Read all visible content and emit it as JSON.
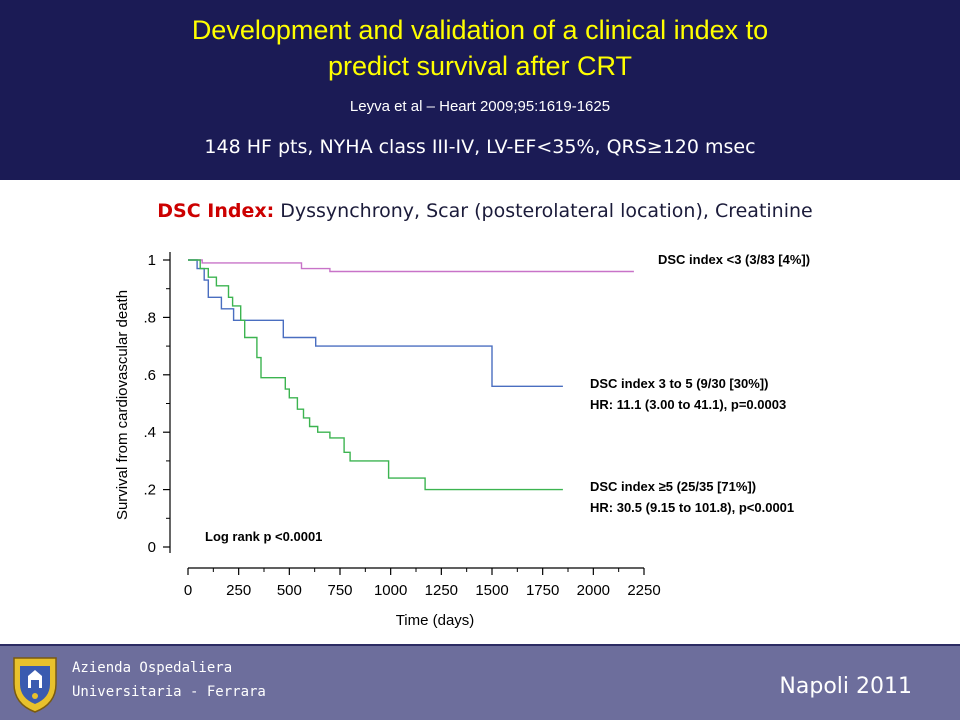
{
  "header": {
    "title_line1": "Development and validation of a clinical index to",
    "title_line2": "predict survival after CRT",
    "citation": "Leyva et al – Heart 2009;95:1619-1625",
    "cohort": "148 HF pts, NYHA class III-IV, LV-EF<35%, QRS≥120 msec"
  },
  "dsc_line": {
    "label": "DSC Index",
    "colon": ":",
    "text": " Dyssynchrony, Scar (posterolateral location), Creatinine"
  },
  "chart_data": {
    "type": "line",
    "step": true,
    "xlabel": "Time (days)",
    "ylabel": "Survival from cardiovascular death",
    "xlim": [
      0,
      2250
    ],
    "ylim": [
      0,
      1
    ],
    "x_ticks": [
      0,
      250,
      500,
      750,
      1000,
      1250,
      1500,
      1750,
      2000,
      2250
    ],
    "x_tick_labels": [
      "0",
      "250",
      "500",
      "750",
      "1000",
      "1250",
      "1500",
      "1750",
      "2000",
      "2250"
    ],
    "y_ticks": [
      0,
      0.2,
      0.4,
      0.6,
      0.8,
      1
    ],
    "y_tick_labels": [
      "0",
      ".2",
      ".4",
      ".6",
      ".8",
      "1"
    ],
    "grid": false,
    "series": [
      {
        "name": "DSC index <3 (3/83 [4%])",
        "color": "#c873c8",
        "x": [
          0,
          70,
          560,
          700,
          2200
        ],
        "y": [
          1.0,
          0.99,
          0.97,
          0.96,
          0.96
        ]
      },
      {
        "name": "DSC index 3 to 5 (9/30 [30%])",
        "color": "#4a6ec0",
        "x": [
          0,
          45,
          80,
          100,
          165,
          225,
          255,
          470,
          630,
          1500,
          1850
        ],
        "y": [
          1.0,
          0.97,
          0.93,
          0.87,
          0.83,
          0.79,
          0.79,
          0.73,
          0.7,
          0.56,
          0.56
        ]
      },
      {
        "name": "DSC index ≥5 (25/35 [71%])",
        "color": "#3cb450",
        "x": [
          0,
          60,
          100,
          140,
          200,
          220,
          260,
          280,
          340,
          360,
          480,
          500,
          540,
          570,
          600,
          640,
          700,
          770,
          800,
          990,
          1170,
          1850
        ],
        "y": [
          1.0,
          0.97,
          0.94,
          0.91,
          0.87,
          0.84,
          0.79,
          0.73,
          0.66,
          0.59,
          0.55,
          0.52,
          0.48,
          0.45,
          0.42,
          0.4,
          0.38,
          0.33,
          0.3,
          0.24,
          0.2,
          0.2
        ]
      }
    ],
    "legend": [
      {
        "line1": "DSC index <3 (3/83 [4%])",
        "line2": ""
      },
      {
        "line1": "DSC index 3 to 5 (9/30 [30%])",
        "line2": "HR: 11.1 (3.00 to 41.1), p=0.0003"
      },
      {
        "line1": "DSC index ≥5 (25/35 [71%])",
        "line2": "HR: 30.5 (9.15 to 101.8), p<0.0001"
      }
    ],
    "annotation": "Log rank p <0.0001"
  },
  "footer": {
    "institution_line1": "Azienda Ospedaliera",
    "institution_line2": "Universitaria - Ferrara",
    "event": "Napoli  2011",
    "crest_icon": "coat-of-arms-icon"
  },
  "colors": {
    "header_bg": "#1b1b55",
    "title": "#ffff00",
    "footer_bg": "#6d6e9c",
    "dsc_label": "#cc0000"
  }
}
